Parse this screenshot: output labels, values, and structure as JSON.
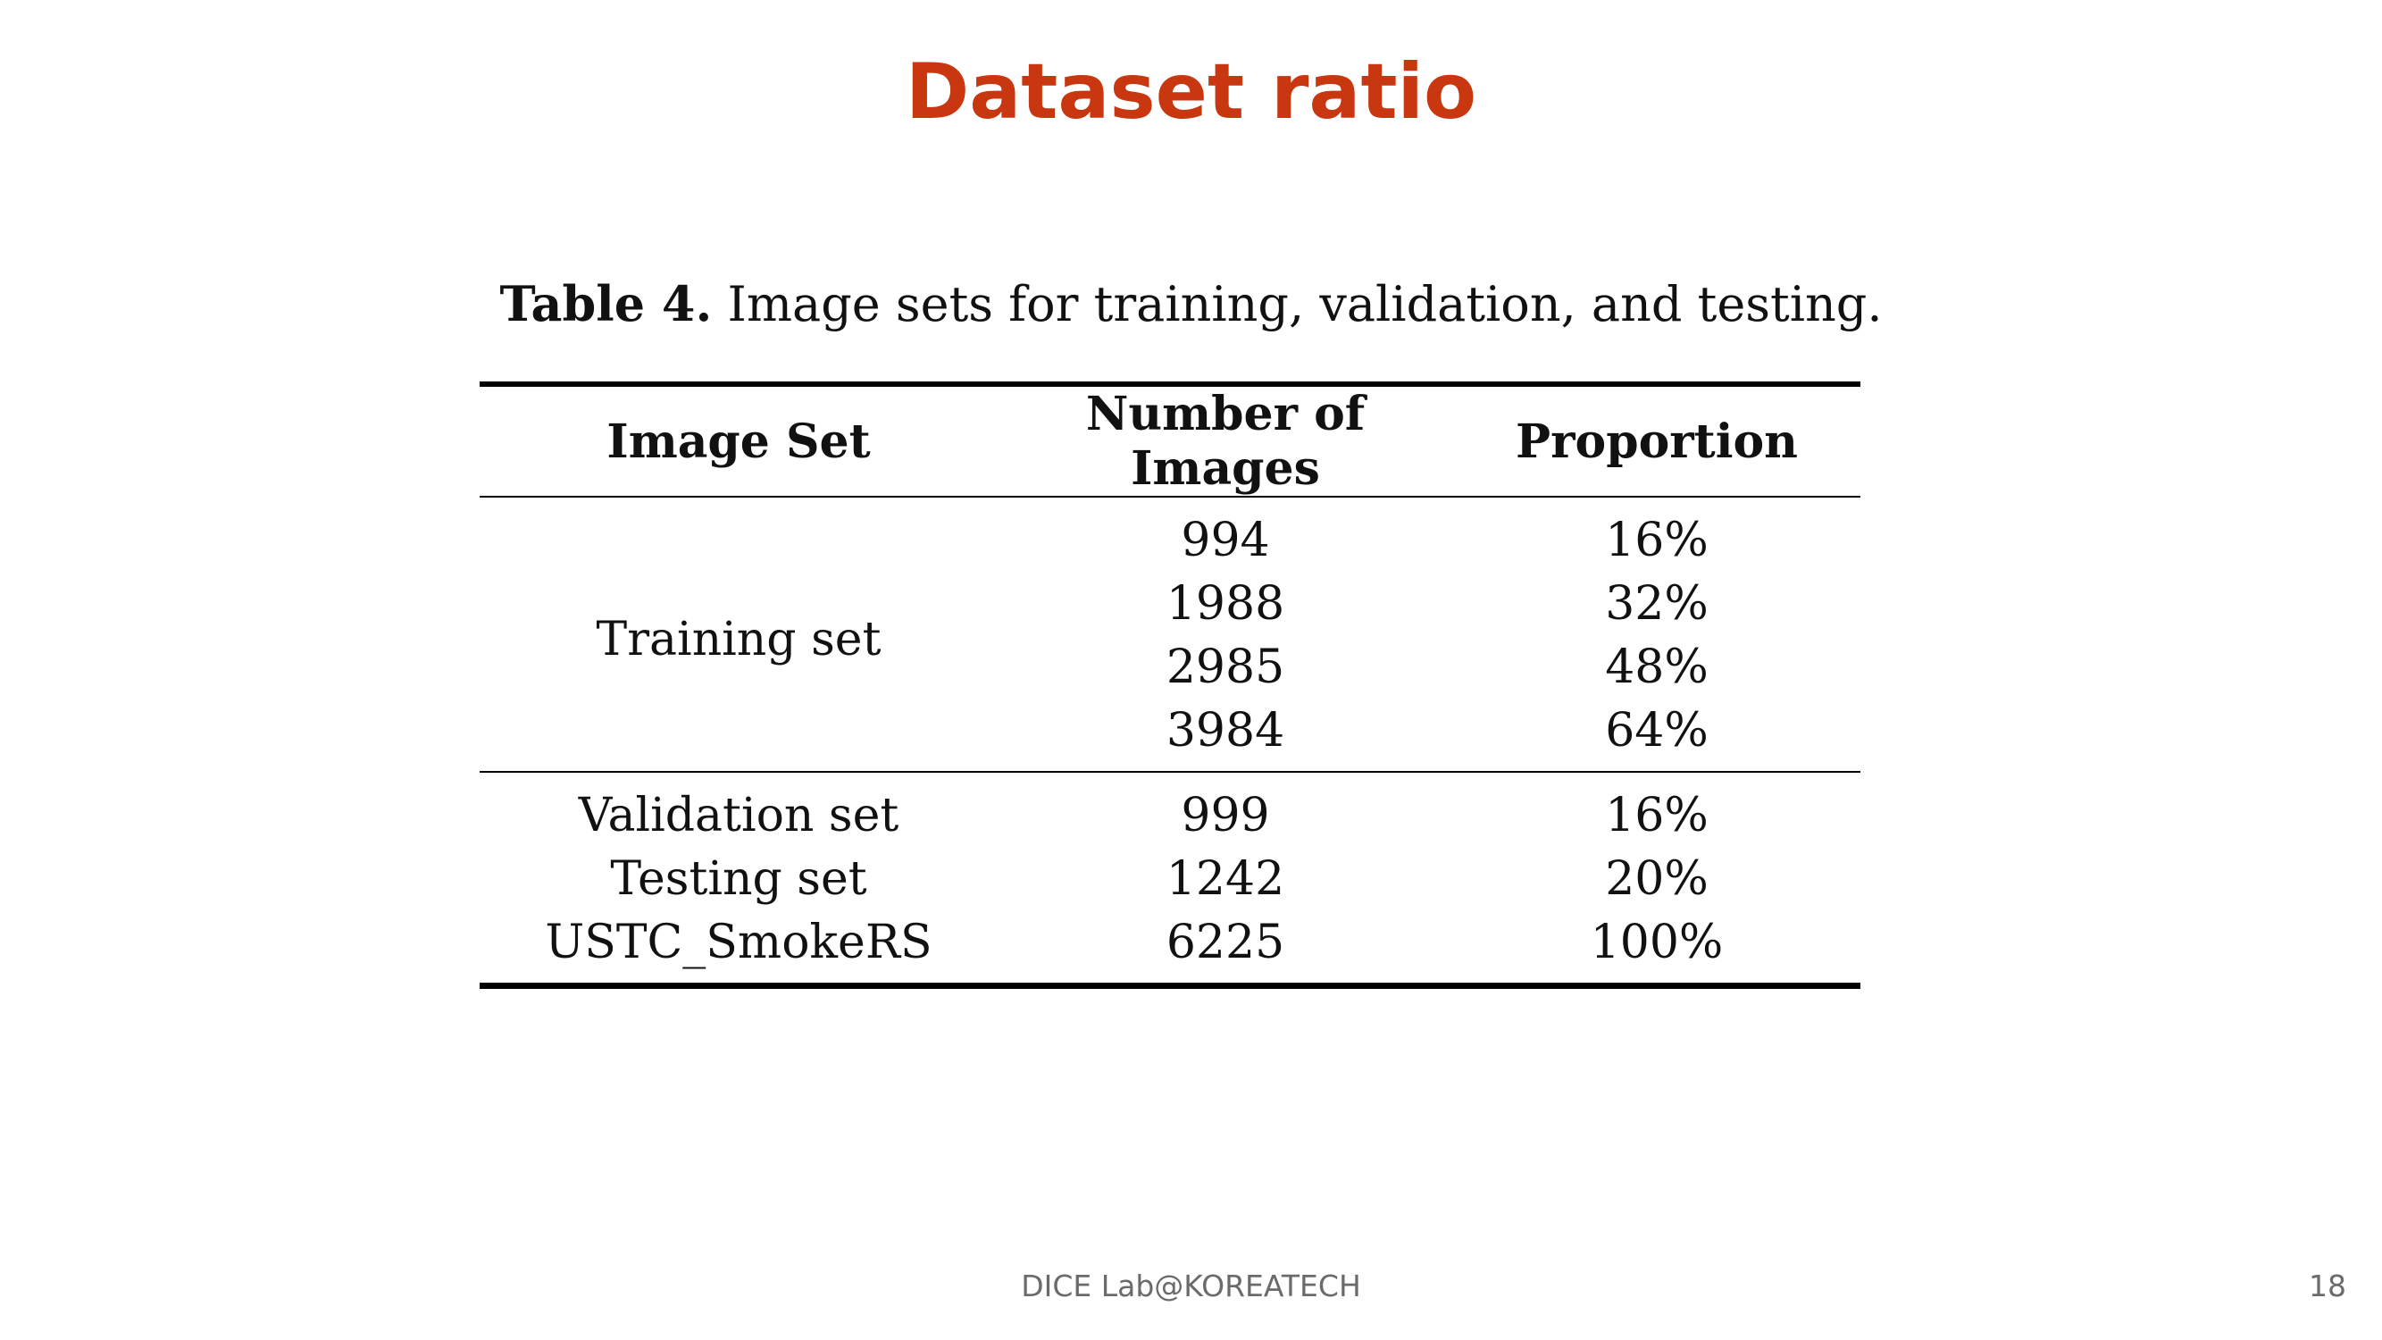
{
  "slide": {
    "title": "Dataset ratio",
    "footer": "DICE  Lab@KOREATECH",
    "page_number": "18"
  },
  "table": {
    "caption_label": "Table 4.",
    "caption_text": "Image sets for training, validation, and testing.",
    "headers": [
      "Image Set",
      "Number of Images",
      "Proportion"
    ],
    "training": {
      "set_name": "Training set",
      "rows": [
        {
          "count": "994",
          "proportion": "16%"
        },
        {
          "count": "1988",
          "proportion": "32%"
        },
        {
          "count": "2985",
          "proportion": "48%"
        },
        {
          "count": "3984",
          "proportion": "64%"
        }
      ]
    },
    "other_rows": [
      {
        "set_name": "Validation set",
        "count": "999",
        "proportion": "16%"
      },
      {
        "set_name": "Testing set",
        "count": "1242",
        "proportion": "20%"
      },
      {
        "set_name": "USTC_SmokeRS",
        "count": "6225",
        "proportion": "100%"
      }
    ]
  },
  "colors": {
    "title": "#c8370f",
    "text": "#111111",
    "footer": "#6b6b6b"
  }
}
